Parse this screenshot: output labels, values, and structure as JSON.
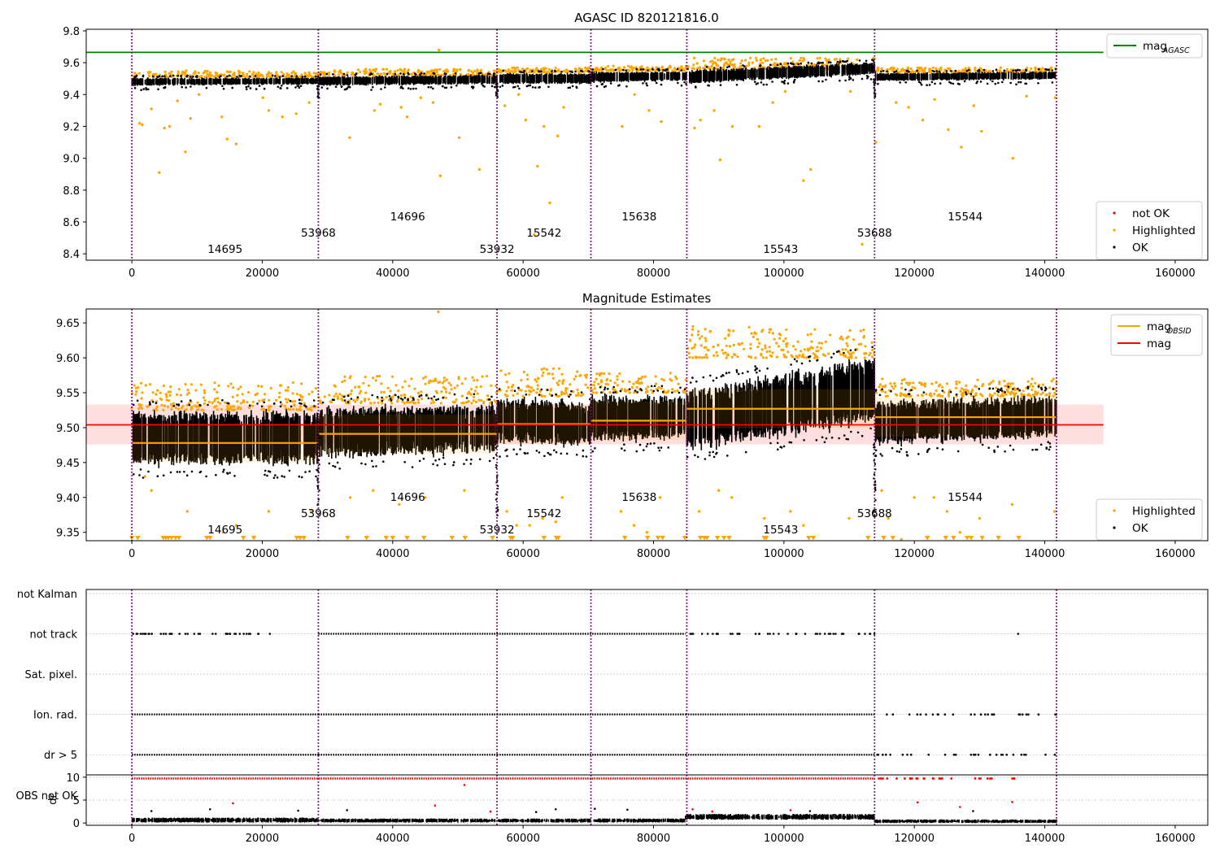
{
  "colors": {
    "highlighted": "#ffa500",
    "ok": "#000000",
    "not_ok": "#ff0000",
    "agasc_line": "#008000",
    "mag_line": "#ff0000",
    "mag_band": "#ffc8c8",
    "obs_line": "#ffa500",
    "obs_vline": "#800080",
    "grid": "#b0b0b0"
  },
  "obs_boundaries": [
    0,
    28600,
    56000,
    70400,
    85100,
    113900,
    141800
  ],
  "obs_labels": [
    {
      "text": "14695",
      "x": 14300,
      "level": 0
    },
    {
      "text": "53968",
      "x": 28600,
      "level": 1
    },
    {
      "text": "14696",
      "x": 42300,
      "level": 2
    },
    {
      "text": "53932",
      "x": 56000,
      "level": 0
    },
    {
      "text": "15542",
      "x": 63200,
      "level": 1
    },
    {
      "text": "15638",
      "x": 77800,
      "level": 2
    },
    {
      "text": "15543",
      "x": 99500,
      "level": 0
    },
    {
      "text": "53688",
      "x": 113900,
      "level": 1
    },
    {
      "text": "15544",
      "x": 127800,
      "level": 2
    }
  ],
  "chart_data": [
    {
      "type": "scatter",
      "title": "AGASC ID 820121816.0",
      "xlim": [
        -7000,
        165000
      ],
      "ylim": [
        8.36,
        9.81
      ],
      "xticks": [
        0,
        20000,
        40000,
        60000,
        80000,
        100000,
        120000,
        140000,
        160000
      ],
      "yticks": [
        8.4,
        8.6,
        8.8,
        9.0,
        9.2,
        9.4,
        9.6,
        9.8
      ],
      "ytick_labels": [
        "8.4",
        "8.6",
        "8.8",
        "9.0",
        "9.2",
        "9.4",
        "9.6",
        "9.8"
      ],
      "legend_top": {
        "position": "top-right",
        "entries": [
          {
            "label": "mag",
            "sub": "AGASC",
            "kind": "line",
            "color": "#008000"
          }
        ]
      },
      "legend_bottom": {
        "position": "bottom-right",
        "entries": [
          {
            "label": "not OK",
            "kind": "dot",
            "color": "#ff0000"
          },
          {
            "label": "Highlighted",
            "kind": "dot",
            "color": "#ffa500"
          },
          {
            "label": "OK",
            "kind": "dot",
            "color": "#000000"
          }
        ]
      },
      "mag_agasc": 9.665,
      "line_xrange": [
        -7000,
        149000
      ],
      "ok_segments": [
        {
          "x0": 0,
          "x1": 28600,
          "lo0": 9.45,
          "hi0": 9.51,
          "lo1": 9.46,
          "hi1": 9.51
        },
        {
          "x0": 28600,
          "x1": 56000,
          "lo0": 9.45,
          "hi0": 9.52,
          "lo1": 9.46,
          "hi1": 9.53
        },
        {
          "x0": 56000,
          "x1": 70400,
          "lo0": 9.46,
          "hi0": 9.54,
          "lo1": 9.46,
          "hi1": 9.54
        },
        {
          "x0": 70400,
          "x1": 85100,
          "lo0": 9.47,
          "hi0": 9.55,
          "lo1": 9.48,
          "hi1": 9.55
        },
        {
          "x0": 85100,
          "x1": 113900,
          "lo0": 9.46,
          "hi0": 9.56,
          "lo1": 9.52,
          "hi1": 9.61
        },
        {
          "x0": 113900,
          "x1": 141800,
          "lo0": 9.48,
          "hi0": 9.54,
          "lo1": 9.49,
          "hi1": 9.55
        }
      ],
      "highlight_upper": [
        {
          "x0": 0,
          "x1": 28600,
          "lo": 9.51,
          "hi": 9.55
        },
        {
          "x0": 28600,
          "x1": 56000,
          "lo": 9.52,
          "hi": 9.56
        },
        {
          "x0": 56000,
          "x1": 70400,
          "lo": 9.54,
          "hi": 9.57
        },
        {
          "x0": 70400,
          "x1": 85100,
          "lo": 9.55,
          "hi": 9.58
        },
        {
          "x0": 85100,
          "x1": 113900,
          "lo": 9.56,
          "hi": 9.63
        },
        {
          "x0": 113900,
          "x1": 141800,
          "lo": 9.54,
          "hi": 9.57
        }
      ],
      "highlighted_outliers": [
        [
          1200,
          9.22
        ],
        [
          1600,
          9.21
        ],
        [
          3000,
          9.31
        ],
        [
          4200,
          8.91
        ],
        [
          5000,
          9.19
        ],
        [
          5800,
          9.2
        ],
        [
          7000,
          9.36
        ],
        [
          8200,
          9.04
        ],
        [
          9000,
          9.25
        ],
        [
          10300,
          9.4
        ],
        [
          13800,
          9.26
        ],
        [
          14600,
          9.12
        ],
        [
          16000,
          9.09
        ],
        [
          20100,
          9.38
        ],
        [
          21000,
          9.3
        ],
        [
          23100,
          9.26
        ],
        [
          25200,
          9.28
        ],
        [
          27200,
          9.35
        ],
        [
          33400,
          9.13
        ],
        [
          37200,
          9.3
        ],
        [
          38100,
          9.34
        ],
        [
          41300,
          9.32
        ],
        [
          42200,
          9.26
        ],
        [
          44300,
          9.38
        ],
        [
          46200,
          9.35
        ],
        [
          47100,
          9.68
        ],
        [
          47300,
          8.89
        ],
        [
          50200,
          9.13
        ],
        [
          53300,
          8.93
        ],
        [
          57200,
          9.33
        ],
        [
          59300,
          9.4
        ],
        [
          60400,
          9.24
        ],
        [
          62200,
          8.95
        ],
        [
          63200,
          9.2
        ],
        [
          64100,
          8.72
        ],
        [
          65300,
          9.14
        ],
        [
          66200,
          9.32
        ],
        [
          75200,
          9.2
        ],
        [
          77100,
          9.4
        ],
        [
          79300,
          9.3
        ],
        [
          81200,
          9.23
        ],
        [
          86300,
          9.19
        ],
        [
          87200,
          9.24
        ],
        [
          89300,
          9.3
        ],
        [
          90200,
          8.99
        ],
        [
          92100,
          9.2
        ],
        [
          96200,
          9.2
        ],
        [
          98300,
          9.35
        ],
        [
          100200,
          9.42
        ],
        [
          103000,
          8.86
        ],
        [
          104100,
          8.93
        ],
        [
          110200,
          9.42
        ],
        [
          114100,
          9.1
        ],
        [
          117200,
          9.35
        ],
        [
          119100,
          9.32
        ],
        [
          121300,
          9.24
        ],
        [
          123100,
          9.37
        ],
        [
          125200,
          9.18
        ],
        [
          127200,
          9.07
        ],
        [
          129100,
          9.33
        ],
        [
          130300,
          9.17
        ],
        [
          135100,
          9.0
        ],
        [
          137200,
          9.39
        ],
        [
          141600,
          9.38
        ],
        [
          61700,
          8.52
        ],
        [
          112000,
          8.46
        ]
      ],
      "not_ok": [
        [
          28600,
          9.43
        ],
        [
          56000,
          9.42
        ],
        [
          113900,
          9.51
        ]
      ]
    },
    {
      "type": "scatter",
      "title": "Magnitude Estimates",
      "xlim": [
        -7000,
        165000
      ],
      "ylim": [
        9.338,
        9.67
      ],
      "xticks": [
        0,
        20000,
        40000,
        60000,
        80000,
        100000,
        120000,
        140000,
        160000
      ],
      "yticks": [
        9.35,
        9.4,
        9.45,
        9.5,
        9.55,
        9.6,
        9.65
      ],
      "ytick_labels": [
        "9.35",
        "9.40",
        "9.45",
        "9.50",
        "9.55",
        "9.60",
        "9.65"
      ],
      "legend_top": {
        "position": "top-right",
        "entries": [
          {
            "label": "mag",
            "sub": "OBSID",
            "kind": "line",
            "color": "#ffa500"
          },
          {
            "label": "mag",
            "kind": "line",
            "color": "#ff0000"
          }
        ]
      },
      "legend_bottom": {
        "position": "bottom-right",
        "entries": [
          {
            "label": "Highlighted",
            "kind": "dot",
            "color": "#ffa500"
          },
          {
            "label": "OK",
            "kind": "dot",
            "color": "#000000"
          }
        ]
      },
      "mag": 9.504,
      "mag_band": [
        9.476,
        9.533
      ],
      "line_xrange": [
        -7000,
        149000
      ],
      "mag_obsid": [
        9.478,
        9.491,
        9.505,
        9.51,
        9.527,
        9.515
      ],
      "obs_band_half": 0.028,
      "ok_segments": [
        {
          "x0": 0,
          "x1": 28600,
          "lo0": 9.44,
          "hi0": 9.53,
          "lo1": 9.44,
          "hi1": 9.53
        },
        {
          "x0": 28600,
          "x1": 56000,
          "lo0": 9.45,
          "hi0": 9.535,
          "lo1": 9.46,
          "hi1": 9.54
        },
        {
          "x0": 56000,
          "x1": 70400,
          "lo0": 9.47,
          "hi0": 9.55,
          "lo1": 9.47,
          "hi1": 9.54
        },
        {
          "x0": 70400,
          "x1": 85100,
          "lo0": 9.475,
          "hi0": 9.55,
          "lo1": 9.48,
          "hi1": 9.55
        },
        {
          "x0": 85100,
          "x1": 113900,
          "lo0": 9.46,
          "hi0": 9.56,
          "lo1": 9.5,
          "hi1": 9.61
        },
        {
          "x0": 113900,
          "x1": 141800,
          "lo0": 9.47,
          "hi0": 9.545,
          "lo1": 9.48,
          "hi1": 9.55
        }
      ],
      "highlight_upper": [
        {
          "x0": 0,
          "x1": 28600,
          "lo": 9.525,
          "hi": 9.565
        },
        {
          "x0": 28600,
          "x1": 56000,
          "lo": 9.535,
          "hi": 9.575
        },
        {
          "x0": 56000,
          "x1": 70400,
          "lo": 9.545,
          "hi": 9.585
        },
        {
          "x0": 70400,
          "x1": 85100,
          "lo": 9.55,
          "hi": 9.58
        },
        {
          "x0": 85100,
          "x1": 113900,
          "lo": 9.6,
          "hi": 9.645
        },
        {
          "x0": 113900,
          "x1": 141800,
          "lo": 9.545,
          "hi": 9.57
        }
      ],
      "highlighted_outliers": [
        [
          2000,
          9.43
        ],
        [
          3000,
          9.41
        ],
        [
          8500,
          9.38
        ],
        [
          14000,
          9.35
        ],
        [
          16000,
          9.36
        ],
        [
          21000,
          9.38
        ],
        [
          27500,
          9.38
        ],
        [
          33500,
          9.4
        ],
        [
          37000,
          9.41
        ],
        [
          41000,
          9.39
        ],
        [
          45000,
          9.4
        ],
        [
          47000,
          9.666
        ],
        [
          51000,
          9.41
        ],
        [
          57500,
          9.38
        ],
        [
          59000,
          9.36
        ],
        [
          61000,
          9.36
        ],
        [
          63000,
          9.37
        ],
        [
          65000,
          9.365
        ],
        [
          66000,
          9.4
        ],
        [
          75000,
          9.38
        ],
        [
          77000,
          9.36
        ],
        [
          79000,
          9.35
        ],
        [
          81000,
          9.4
        ],
        [
          87000,
          9.38
        ],
        [
          90000,
          9.41
        ],
        [
          92000,
          9.4
        ],
        [
          97000,
          9.37
        ],
        [
          101000,
          9.38
        ],
        [
          103000,
          9.36
        ],
        [
          110000,
          9.37
        ],
        [
          115000,
          9.41
        ],
        [
          116000,
          9.37
        ],
        [
          118000,
          9.34
        ],
        [
          120000,
          9.4
        ],
        [
          123000,
          9.4
        ],
        [
          125000,
          9.38
        ],
        [
          127000,
          9.35
        ],
        [
          130000,
          9.37
        ],
        [
          135000,
          9.39
        ],
        [
          141500,
          9.38
        ]
      ],
      "clipped_below": [
        0,
        900,
        4800,
        5200,
        5600,
        6100,
        6700,
        7200,
        11500,
        12000,
        17100,
        18700,
        25300,
        25800,
        26400,
        33100,
        36000,
        39000,
        40000,
        42200,
        44800,
        49100,
        51100,
        55300,
        58100,
        58400,
        63200,
        65100,
        65400,
        75600,
        79100,
        80700,
        81400,
        84800,
        87200,
        87800,
        88200,
        89800,
        90800,
        91600,
        97000,
        97300,
        103800,
        104500,
        112900,
        115300,
        116700,
        122000,
        124800,
        126000,
        128100,
        128700,
        130400,
        132900,
        136000
      ]
    },
    {
      "type": "scatter",
      "title": "",
      "xlim": [
        -7000,
        165000
      ],
      "ylim": [
        -0.5,
        4.1
      ],
      "xticks": [
        0,
        20000,
        40000,
        60000,
        80000,
        100000,
        120000,
        140000,
        160000
      ],
      "yticks": [],
      "flag_rows": [
        {
          "label": "not Kalman",
          "y": 4,
          "dense": [],
          "sparse": []
        },
        {
          "label": "not track",
          "y": 3,
          "dense": [
            [
              28600,
              56000
            ],
            [
              56000,
              84900
            ]
          ],
          "sparse": [
            [
              0,
              20000,
              40
            ],
            [
              21000,
              22000,
              1
            ],
            [
              84900,
              113900,
              45
            ],
            [
              135000,
              136000,
              1
            ]
          ]
        },
        {
          "label": "Sat. pixel.",
          "y": 2,
          "dense": [],
          "sparse": []
        },
        {
          "label": "Ion. rad.",
          "y": 1,
          "dense": [
            [
              0,
              28600
            ],
            [
              28600,
              56000
            ],
            [
              56000,
              84900
            ],
            [
              84900,
              113900
            ]
          ],
          "sparse": [
            [
              113900,
              141800,
              28
            ]
          ]
        },
        {
          "label": "dr > 5",
          "y": 0,
          "dense": [
            [
              0,
              28600
            ],
            [
              28600,
              56000
            ],
            [
              56000,
              84900
            ],
            [
              84900,
              113900
            ]
          ],
          "sparse": [
            [
              113900,
              141800,
              28
            ]
          ]
        },
        {
          "label": "OBS not OK",
          "y": -1,
          "dense": [],
          "sparse": []
        }
      ]
    },
    {
      "type": "scatter",
      "title": "",
      "ylabel": "dr",
      "xlim": [
        -7000,
        165000
      ],
      "ylim": [
        -0.5,
        10.5
      ],
      "xticks": [
        0,
        20000,
        40000,
        60000,
        80000,
        100000,
        120000,
        140000,
        160000
      ],
      "xtick_labels": [
        "0",
        "20000",
        "40000",
        "60000",
        "80000",
        "100000",
        "120000",
        "140000",
        "160000"
      ],
      "yticks": [
        0,
        5,
        10
      ],
      "ytick_labels": [
        "0",
        "5",
        "10"
      ],
      "not_ok_line_y": 9.7,
      "not_ok_dense": [
        0,
        113900
      ],
      "not_ok_sparse": [
        113900,
        136000
      ],
      "ok_segments": [
        {
          "x0": 0,
          "x1": 28600,
          "lo": 0.1,
          "hi": 1.2
        },
        {
          "x0": 28600,
          "x1": 56000,
          "lo": 0.1,
          "hi": 1.0
        },
        {
          "x0": 56000,
          "x1": 84900,
          "lo": 0.1,
          "hi": 1.0
        },
        {
          "x0": 84900,
          "x1": 113900,
          "lo": 0.7,
          "hi": 2.0
        },
        {
          "x0": 113900,
          "x1": 141800,
          "lo": 0.0,
          "hi": 0.8
        }
      ],
      "red_outliers": [
        [
          15500,
          4.3
        ],
        [
          51000,
          8.3
        ],
        [
          46500,
          3.8
        ],
        [
          55000,
          2.5
        ],
        [
          86000,
          3.0
        ],
        [
          89000,
          2.5
        ],
        [
          101000,
          2.8
        ],
        [
          120500,
          4.5
        ],
        [
          135000,
          4.6
        ],
        [
          127000,
          3.5
        ]
      ],
      "black_outliers": [
        [
          3000,
          2.6
        ],
        [
          12000,
          3.0
        ],
        [
          25500,
          2.7
        ],
        [
          33000,
          2.8
        ],
        [
          62000,
          2.4
        ],
        [
          65000,
          3.0
        ],
        [
          71000,
          3.1
        ],
        [
          76000,
          2.9
        ],
        [
          104000,
          2.6
        ],
        [
          129000,
          2.6
        ]
      ]
    }
  ]
}
